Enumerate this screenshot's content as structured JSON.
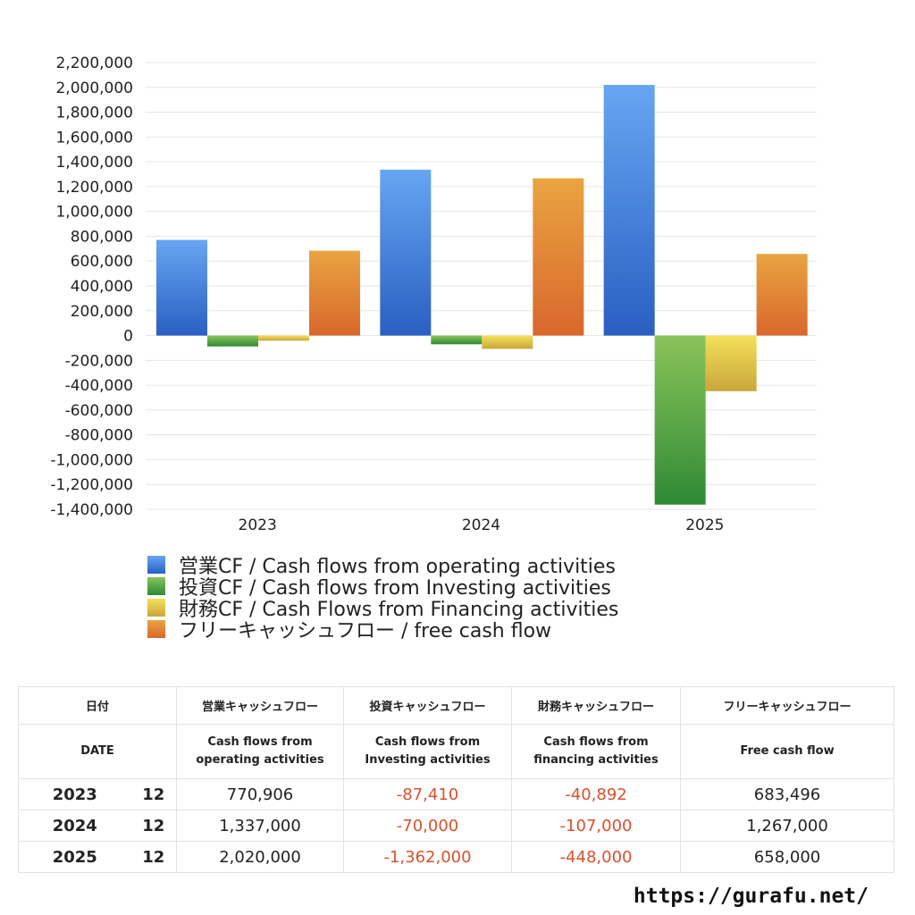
{
  "chart_data": {
    "type": "bar",
    "categories": [
      "2023",
      "2024",
      "2025"
    ],
    "series": [
      {
        "name": "営業CF / Cash flows from operating activities",
        "values": [
          770906,
          1337000,
          2020000
        ],
        "color_top": "#66a6f2",
        "color_bottom": "#2a5fc2"
      },
      {
        "name": "投資CF / Cash flows from Investing activities",
        "values": [
          -87410,
          -70000,
          -1362000
        ],
        "color_top": "#8ac45a",
        "color_bottom": "#2f8a35"
      },
      {
        "name": "財務CF / Cash Flows from Financing activities",
        "values": [
          -40892,
          -107000,
          -448000
        ],
        "color_top": "#f4e05a",
        "color_bottom": "#c9a63a"
      },
      {
        "name": "フリーキャッシュフロー / free cash flow",
        "values": [
          683496,
          1267000,
          658000
        ],
        "color_top": "#e9a441",
        "color_bottom": "#d9672c"
      }
    ],
    "ylim": [
      -1400000,
      2200000
    ],
    "ytick_step": 200000,
    "yticks": [
      "2,200,000",
      "2,000,000",
      "1,800,000",
      "1,600,000",
      "1,400,000",
      "1,200,000",
      "1,000,000",
      "800,000",
      "600,000",
      "400,000",
      "200,000",
      "0",
      "-200,000",
      "-400,000",
      "-600,000",
      "-800,000",
      "-1,000,000",
      "-1,200,000",
      "-1,400,000"
    ],
    "grid": true,
    "legend_position": "bottom"
  },
  "table": {
    "headers_ja": [
      "日付",
      "営業キャッシュフロー",
      "投資キャッシュフロー",
      "財務キャッシュフロー",
      "フリーキャッシュフロー"
    ],
    "headers_en": [
      "DATE",
      "Cash flows from\noperating activities",
      "Cash flows from\nInvesting activities",
      "Cash flows from\nfinancing activities",
      "Free cash flow"
    ],
    "rows": [
      {
        "year": "2023",
        "month": "12",
        "operating": "770,906",
        "investing": "-87,410",
        "financing": "-40,892",
        "free": "683,496"
      },
      {
        "year": "2024",
        "month": "12",
        "operating": "1,337,000",
        "investing": "-70,000",
        "financing": "-107,000",
        "free": "1,267,000"
      },
      {
        "year": "2025",
        "month": "12",
        "operating": "2,020,000",
        "investing": "-1,362,000",
        "financing": "-448,000",
        "free": "658,000"
      }
    ]
  },
  "footer": {
    "url": "https://gurafu.net/"
  }
}
